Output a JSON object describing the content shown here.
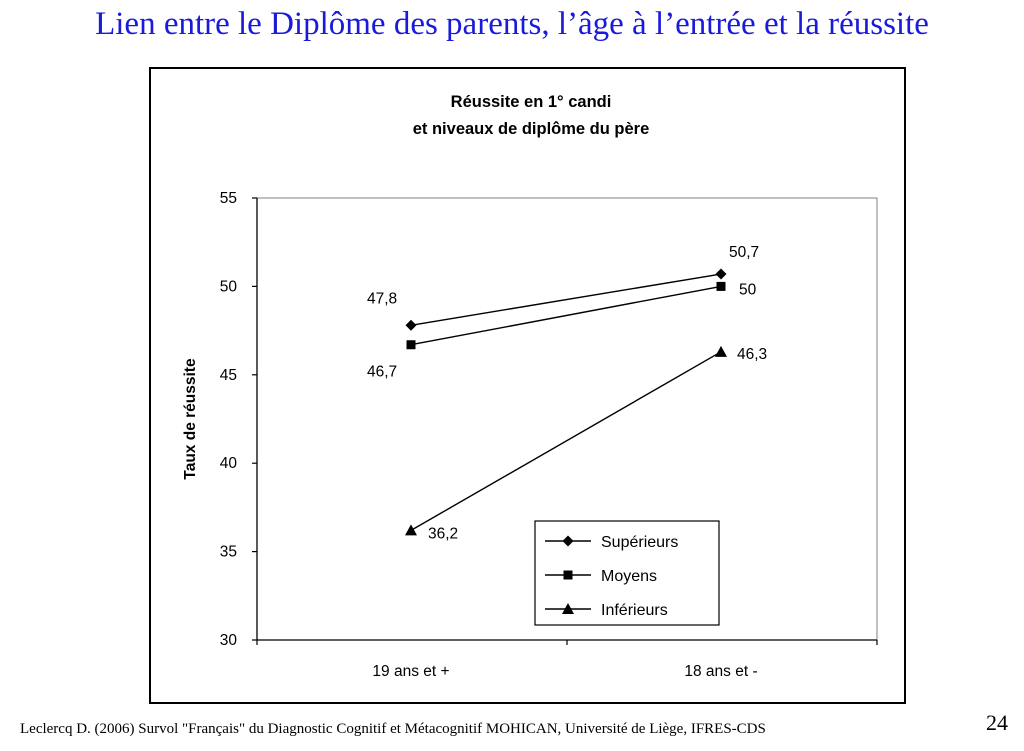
{
  "slide": {
    "title": "Lien entre le Diplôme des parents, l’âge à l’entrée et la réussite",
    "footer": "Leclercq D. (2006) Survol \"Français\" du Diagnostic Cognitif et Métacognitif MOHICAN,  Université de Liège, IFRES-CDS",
    "page_number": "24"
  },
  "chart_data": {
    "type": "line",
    "title_lines": [
      "Réussite en 1° candi",
      "et niveaux de diplôme du père"
    ],
    "xlabel": "",
    "ylabel": "Taux de réussite",
    "categories": [
      "19 ans et +",
      "18 ans et -"
    ],
    "ylim": [
      30,
      55
    ],
    "yticks": [
      30,
      35,
      40,
      45,
      50,
      55
    ],
    "grid": false,
    "legend_position": "bottom-right",
    "series": [
      {
        "name": "Supérieurs",
        "marker": "diamond",
        "values": [
          47.8,
          50.7
        ],
        "labels": [
          "47,8",
          "50,7"
        ],
        "color": "#000000"
      },
      {
        "name": "Moyens",
        "marker": "square",
        "values": [
          46.7,
          50
        ],
        "labels": [
          "46,7",
          "50"
        ],
        "color": "#000000"
      },
      {
        "name": "Inférieurs",
        "marker": "triangle",
        "values": [
          36.2,
          46.3
        ],
        "labels": [
          "36,2",
          "46,3"
        ],
        "color": "#000000"
      }
    ]
  }
}
